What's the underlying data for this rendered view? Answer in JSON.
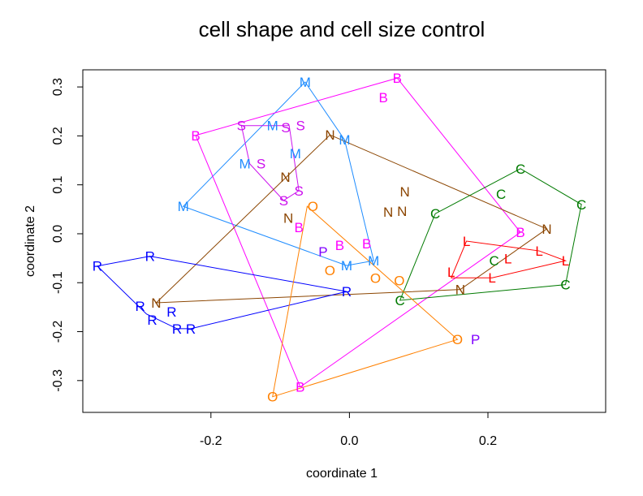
{
  "chart_data": {
    "type": "scatter",
    "title": "cell shape and cell size control",
    "xlabel": "coordinate 1",
    "ylabel": "coordinate 2",
    "xlim": [
      -0.385,
      0.37
    ],
    "ylim": [
      -0.365,
      0.335
    ],
    "xticks": [
      -0.2,
      0.0,
      0.2
    ],
    "yticks": [
      -0.3,
      -0.2,
      -0.1,
      0.0,
      0.1,
      0.2,
      0.3
    ],
    "grid": false,
    "legend": "none",
    "hulls": true,
    "series": [
      {
        "label": "M",
        "color": "#1E8CFF",
        "points": [
          [
            -0.064,
            0.31
          ],
          [
            -0.111,
            0.221
          ],
          [
            -0.078,
            0.164
          ],
          [
            -0.151,
            0.143
          ],
          [
            -0.24,
            0.056
          ],
          [
            -0.007,
            0.192
          ],
          [
            -0.004,
            -0.065
          ],
          [
            0.035,
            -0.055
          ]
        ]
      },
      {
        "label": "S",
        "color": "#CC11EE",
        "points": [
          [
            -0.156,
            0.221
          ],
          [
            -0.1,
            0.217
          ],
          [
            -0.087,
            0.221
          ],
          [
            -0.144,
            0.143
          ],
          [
            -0.073,
            0.088
          ],
          [
            -0.095,
            0.068
          ]
        ]
      },
      {
        "label": "B",
        "color": "#FF00FF",
        "points": [
          [
            -0.222,
            0.201
          ],
          [
            0.069,
            0.318
          ],
          [
            0.049,
            0.279
          ],
          [
            -0.073,
            0.013
          ],
          [
            -0.014,
            -0.035
          ],
          [
            0.025,
            -0.032
          ],
          [
            0.247,
            0.003
          ],
          [
            -0.071,
            -0.313
          ]
        ]
      },
      {
        "label": "N",
        "color": "#8B4500",
        "points": [
          [
            -0.028,
            0.202
          ],
          [
            -0.076,
            0.093
          ],
          [
            -0.08,
            0.032
          ],
          [
            0.08,
            0.086
          ],
          [
            0.056,
            0.045
          ],
          [
            0.076,
            0.046
          ],
          [
            0.285,
            0.01
          ],
          [
            0.16,
            -0.114
          ],
          [
            -0.279,
            -0.141
          ]
        ]
      },
      {
        "label": "C",
        "color": "#007A00",
        "points": [
          [
            0.247,
            0.133
          ],
          [
            0.219,
            0.081
          ],
          [
            0.124,
            0.041
          ],
          [
            0.335,
            0.06
          ],
          [
            0.209,
            -0.055
          ],
          [
            0.312,
            -0.104
          ],
          [
            0.073,
            -0.136
          ]
        ]
      },
      {
        "label": "L",
        "color": "#FF0000",
        "points": [
          [
            0.169,
            -0.015
          ],
          [
            0.229,
            -0.051
          ],
          [
            0.274,
            -0.035
          ],
          [
            0.312,
            -0.055
          ],
          [
            0.147,
            -0.09
          ],
          [
            0.206,
            -0.09
          ]
        ]
      },
      {
        "label": "R",
        "color": "#0000FF",
        "points": [
          [
            -0.364,
            -0.066
          ],
          [
            -0.288,
            -0.046
          ],
          [
            -0.294,
            -0.148
          ],
          [
            -0.293,
            -0.164
          ],
          [
            -0.265,
            -0.159
          ],
          [
            -0.249,
            -0.194
          ],
          [
            -0.229,
            -0.194
          ],
          [
            -0.004,
            -0.118
          ]
        ]
      },
      {
        "label": "O",
        "color": "#FF8000",
        "points": [
          [
            -0.061,
            0.056
          ],
          [
            0.013,
            -0.056
          ],
          [
            -0.02,
            -0.075
          ],
          [
            0.072,
            -0.119
          ],
          [
            0.156,
            -0.216
          ],
          [
            -0.111,
            -0.333
          ]
        ]
      },
      {
        "label": "P",
        "color": "#8000FF",
        "points": [
          [
            -0.038,
            -0.048
          ],
          [
            0.182,
            -0.216
          ]
        ]
      }
    ]
  }
}
